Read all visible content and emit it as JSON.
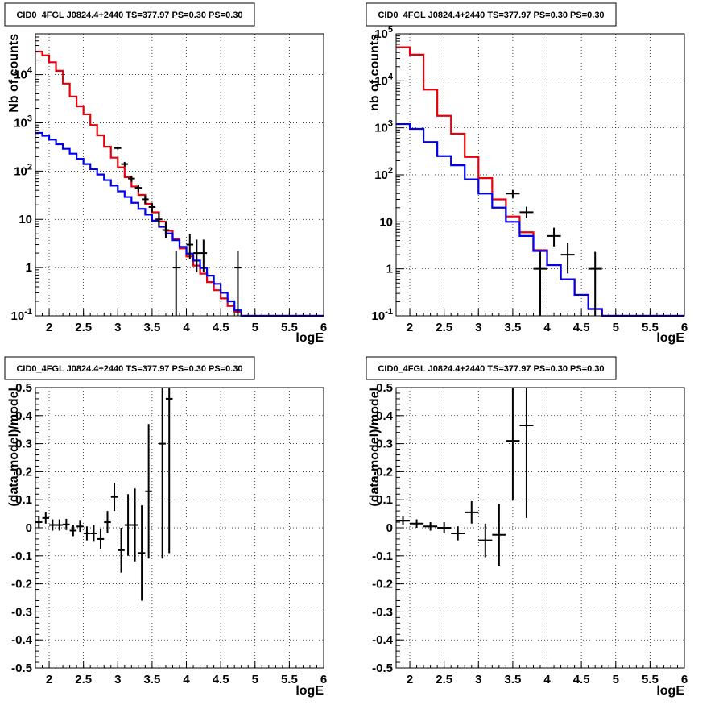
{
  "colors": {
    "model_total": "#e8000b",
    "model_bkg": "#0000ee",
    "data": "#000000",
    "grid": "#000000"
  },
  "chart_data": [
    {
      "type": "histogram",
      "title": "CID0_4FGL J0824.4+2440 TS=377.97 PS=0.30 PS=0.30",
      "xlabel": "logE",
      "ylabel": "Nb of counts",
      "xlim": [
        1.8,
        6
      ],
      "ylim": [
        0.1,
        70000
      ],
      "log_y": true,
      "grid": true,
      "x_ticks": [
        "2",
        "2.5",
        "3",
        "3.5",
        "4",
        "4.5",
        "5",
        "5.5",
        "6"
      ],
      "y_ticks": [
        "10^-1",
        "1",
        "10",
        "10^2",
        "10^3",
        "10^4"
      ],
      "series": [
        {
          "color": "red",
          "style": "step",
          "edges": [
            1.8,
            1.9,
            2.0,
            2.1,
            2.2,
            2.3,
            2.4,
            2.5,
            2.6,
            2.7,
            2.8,
            2.9,
            3.0,
            3.1,
            3.2,
            3.3,
            3.4,
            3.5,
            3.6,
            3.7,
            3.8,
            3.9,
            4.0,
            4.1,
            4.2,
            4.3,
            4.4,
            4.5,
            4.6,
            4.7,
            4.8,
            4.9,
            5.0,
            5.1,
            5.2,
            5.3,
            5.4,
            5.5,
            5.6,
            5.7,
            5.8,
            5.9,
            6.0
          ],
          "values": [
            30000,
            25000,
            18000,
            12000,
            6500,
            3500,
            2200,
            1500,
            900,
            550,
            320,
            190,
            120,
            75,
            48,
            32,
            21,
            14,
            9,
            5.8,
            3.9,
            2.5,
            1.7,
            1.1,
            0.75,
            0.5,
            0.34,
            0.23,
            0.16,
            0.12,
            0.1,
            0.1,
            0.1,
            0.1,
            0.1,
            0.1,
            0.1,
            0.1,
            0.1,
            0.1,
            0.1,
            0.1
          ]
        },
        {
          "color": "blue",
          "style": "step",
          "edges": [
            1.8,
            1.9,
            2.0,
            2.1,
            2.2,
            2.3,
            2.4,
            2.5,
            2.6,
            2.7,
            2.8,
            2.9,
            3.0,
            3.1,
            3.2,
            3.3,
            3.4,
            3.5,
            3.6,
            3.7,
            3.8,
            3.9,
            4.0,
            4.1,
            4.2,
            4.3,
            4.4,
            4.5,
            4.6,
            4.7,
            4.8,
            4.9,
            5.0,
            5.1,
            5.2,
            5.3,
            5.4,
            5.5,
            5.6,
            5.7,
            5.8,
            5.9,
            6.0
          ],
          "values": [
            620,
            540,
            450,
            360,
            290,
            230,
            180,
            140,
            110,
            85,
            65,
            50,
            38,
            29,
            22,
            16.5,
            12.5,
            9.4,
            7,
            5.1,
            3.7,
            2.7,
            1.95,
            1.4,
            0.98,
            0.68,
            0.46,
            0.3,
            0.2,
            0.13,
            0.1,
            0.1,
            0.1,
            0.1,
            0.1,
            0.1,
            0.1,
            0.1,
            0.1,
            0.1,
            0.1,
            0.1
          ]
        },
        {
          "color": "black",
          "style": "errorbar",
          "points": [
            {
              "x": 3.0,
              "y": 300,
              "xerr": 0.05,
              "ylo": 280,
              "yhi": 320
            },
            {
              "x": 3.1,
              "y": 140,
              "xerr": 0.05,
              "ylo": 125,
              "yhi": 155
            },
            {
              "x": 3.2,
              "y": 70,
              "xerr": 0.05,
              "ylo": 60,
              "yhi": 80
            },
            {
              "x": 3.3,
              "y": 45,
              "xerr": 0.05,
              "ylo": 37,
              "yhi": 53
            },
            {
              "x": 3.4,
              "y": 26,
              "xerr": 0.05,
              "ylo": 21,
              "yhi": 31
            },
            {
              "x": 3.5,
              "y": 18,
              "xerr": 0.05,
              "ylo": 14,
              "yhi": 22
            },
            {
              "x": 3.6,
              "y": 10,
              "xerr": 0.05,
              "ylo": 7,
              "yhi": 14
            },
            {
              "x": 3.7,
              "y": 6,
              "xerr": 0.05,
              "ylo": 4,
              "yhi": 9
            },
            {
              "x": 3.85,
              "y": 1,
              "xerr": 0.05,
              "ylo": 0.1,
              "yhi": 2.2
            },
            {
              "x": 4.05,
              "y": 3,
              "xerr": 0.05,
              "ylo": 1.5,
              "yhi": 5
            },
            {
              "x": 4.15,
              "y": 2,
              "xerr": 0.05,
              "ylo": 0.8,
              "yhi": 3.8
            },
            {
              "x": 4.25,
              "y": 2,
              "xerr": 0.05,
              "ylo": 0.8,
              "yhi": 3.8
            },
            {
              "x": 4.75,
              "y": 1,
              "xerr": 0.05,
              "ylo": 0.1,
              "yhi": 2.2
            }
          ]
        }
      ]
    },
    {
      "type": "histogram",
      "title": "CID0_4FGL J0824.4+2440 TS=377.97 PS=0.30 PS=0.30",
      "xlabel": "logE",
      "ylabel": "nb of counts",
      "xlim": [
        1.8,
        6
      ],
      "ylim": [
        0.1,
        100000
      ],
      "log_y": true,
      "grid": true,
      "x_ticks": [
        "2",
        "2.5",
        "3",
        "3.5",
        "4",
        "4.5",
        "5",
        "5.5",
        "6"
      ],
      "y_ticks": [
        "10^-1",
        "1",
        "10",
        "10^2",
        "10^3",
        "10^4",
        "10^5"
      ],
      "series": [
        {
          "color": "red",
          "style": "step",
          "edges": [
            1.8,
            2.0,
            2.2,
            2.4,
            2.6,
            2.8,
            3.0,
            3.2,
            3.4,
            3.6,
            3.8,
            4.0,
            4.2,
            4.4,
            4.6,
            4.8,
            5.0,
            5.2,
            5.4,
            5.6,
            5.8,
            6.0
          ],
          "values": [
            52000,
            36000,
            6500,
            1800,
            750,
            240,
            85,
            30,
            13,
            6,
            2.5,
            1.2,
            0.6,
            0.28,
            0.14,
            0.1,
            0.1,
            0.1,
            0.1,
            0.1,
            0.1
          ]
        },
        {
          "color": "blue",
          "style": "step",
          "edges": [
            1.8,
            2.0,
            2.2,
            2.4,
            2.6,
            2.8,
            3.0,
            3.2,
            3.4,
            3.6,
            3.8,
            4.0,
            4.2,
            4.4,
            4.6,
            4.8,
            5.0,
            5.2,
            5.4,
            5.6,
            5.8,
            6.0
          ],
          "values": [
            1200,
            950,
            500,
            250,
            160,
            80,
            40,
            20,
            10,
            5,
            2.4,
            1.2,
            0.6,
            0.28,
            0.14,
            0.1,
            0.1,
            0.1,
            0.1,
            0.1,
            0.1
          ]
        },
        {
          "color": "black",
          "style": "errorbar",
          "points": [
            {
              "x": 3.5,
              "y": 40,
              "xerr": 0.1,
              "ylo": 32,
              "yhi": 48
            },
            {
              "x": 3.7,
              "y": 16,
              "xerr": 0.1,
              "ylo": 12,
              "yhi": 21
            },
            {
              "x": 3.9,
              "y": 1,
              "xerr": 0.1,
              "ylo": 0.1,
              "yhi": 2.3
            },
            {
              "x": 4.1,
              "y": 5,
              "xerr": 0.1,
              "ylo": 3,
              "yhi": 7.5
            },
            {
              "x": 4.3,
              "y": 2,
              "xerr": 0.1,
              "ylo": 0.8,
              "yhi": 3.6
            },
            {
              "x": 4.7,
              "y": 1,
              "xerr": 0.1,
              "ylo": 0.1,
              "yhi": 2.3
            }
          ]
        }
      ]
    },
    {
      "type": "scatter",
      "title": "CID0_4FGL J0824.4+2440 TS=377.97 PS=0.30 PS=0.30",
      "xlabel": "logE",
      "ylabel": "(data-model)/model",
      "xlim": [
        1.8,
        6
      ],
      "ylim": [
        -0.5,
        0.5
      ],
      "grid": true,
      "x_ticks": [
        "2",
        "2.5",
        "3",
        "3.5",
        "4",
        "4.5",
        "5",
        "5.5",
        "6"
      ],
      "y_ticks": [
        "-0.5",
        "-0.4",
        "-0.3",
        "-0.2",
        "-0.1",
        "0",
        "0.1",
        "0.2",
        "0.3",
        "0.4",
        "0.5"
      ],
      "series": [
        {
          "color": "black",
          "style": "errorbar",
          "points": [
            {
              "x": 1.85,
              "y": 0.02,
              "xerr": 0.05,
              "err": 0.02
            },
            {
              "x": 1.95,
              "y": 0.035,
              "xerr": 0.05,
              "err": 0.02
            },
            {
              "x": 2.05,
              "y": 0.01,
              "xerr": 0.05,
              "err": 0.02
            },
            {
              "x": 2.15,
              "y": 0.01,
              "xerr": 0.05,
              "err": 0.02
            },
            {
              "x": 2.25,
              "y": 0.012,
              "xerr": 0.05,
              "err": 0.02
            },
            {
              "x": 2.35,
              "y": -0.01,
              "xerr": 0.05,
              "err": 0.02
            },
            {
              "x": 2.45,
              "y": 0.005,
              "xerr": 0.05,
              "err": 0.02
            },
            {
              "x": 2.55,
              "y": -0.02,
              "xerr": 0.05,
              "err": 0.025
            },
            {
              "x": 2.65,
              "y": -0.02,
              "xerr": 0.05,
              "err": 0.03
            },
            {
              "x": 2.75,
              "y": -0.04,
              "xerr": 0.05,
              "err": 0.035
            },
            {
              "x": 2.85,
              "y": 0.02,
              "xerr": 0.05,
              "err": 0.04
            },
            {
              "x": 2.95,
              "y": 0.11,
              "xerr": 0.05,
              "err": 0.05
            },
            {
              "x": 3.05,
              "y": -0.08,
              "xerr": 0.05,
              "err": 0.08
            },
            {
              "x": 3.15,
              "y": 0.01,
              "xerr": 0.05,
              "err": 0.11
            },
            {
              "x": 3.25,
              "y": 0.01,
              "xerr": 0.05,
              "err": 0.13
            },
            {
              "x": 3.35,
              "y": -0.09,
              "xerr": 0.05,
              "err": 0.17
            },
            {
              "x": 3.45,
              "y": 0.13,
              "xerr": 0.05,
              "err": 0.24
            },
            {
              "x": 3.65,
              "y": 0.3,
              "xerr": 0.05,
              "err": 0.41
            },
            {
              "x": 3.75,
              "y": 0.46,
              "xerr": 0.05,
              "err": 0.55
            }
          ]
        }
      ]
    },
    {
      "type": "scatter",
      "title": "CID0_4FGL J0824.4+2440 TS=377.97 PS=0.30 PS=0.30",
      "xlabel": "logE",
      "ylabel": "(data-model)/model",
      "xlim": [
        1.8,
        6
      ],
      "ylim": [
        -0.5,
        0.5
      ],
      "grid": true,
      "x_ticks": [
        "2",
        "2.5",
        "3",
        "3.5",
        "4",
        "4.5",
        "5",
        "5.5",
        "6"
      ],
      "y_ticks": [
        "-0.5",
        "-0.4",
        "-0.3",
        "-0.2",
        "-0.1",
        "0",
        "0.1",
        "0.2",
        "0.3",
        "0.4",
        "0.5"
      ],
      "series": [
        {
          "color": "black",
          "style": "errorbar",
          "points": [
            {
              "x": 1.9,
              "y": 0.025,
              "xerr": 0.1,
              "err": 0.015
            },
            {
              "x": 2.1,
              "y": 0.015,
              "xerr": 0.1,
              "err": 0.015
            },
            {
              "x": 2.3,
              "y": 0.005,
              "xerr": 0.1,
              "err": 0.015
            },
            {
              "x": 2.5,
              "y": 0.0,
              "xerr": 0.1,
              "err": 0.02
            },
            {
              "x": 2.7,
              "y": -0.02,
              "xerr": 0.1,
              "err": 0.025
            },
            {
              "x": 2.9,
              "y": 0.055,
              "xerr": 0.1,
              "err": 0.04
            },
            {
              "x": 3.1,
              "y": -0.045,
              "xerr": 0.1,
              "err": 0.06
            },
            {
              "x": 3.3,
              "y": -0.025,
              "xerr": 0.1,
              "err": 0.11
            },
            {
              "x": 3.5,
              "y": 0.31,
              "xerr": 0.1,
              "err": 0.21
            },
            {
              "x": 3.7,
              "y": 0.365,
              "xerr": 0.1,
              "err": 0.33
            }
          ]
        }
      ]
    }
  ]
}
